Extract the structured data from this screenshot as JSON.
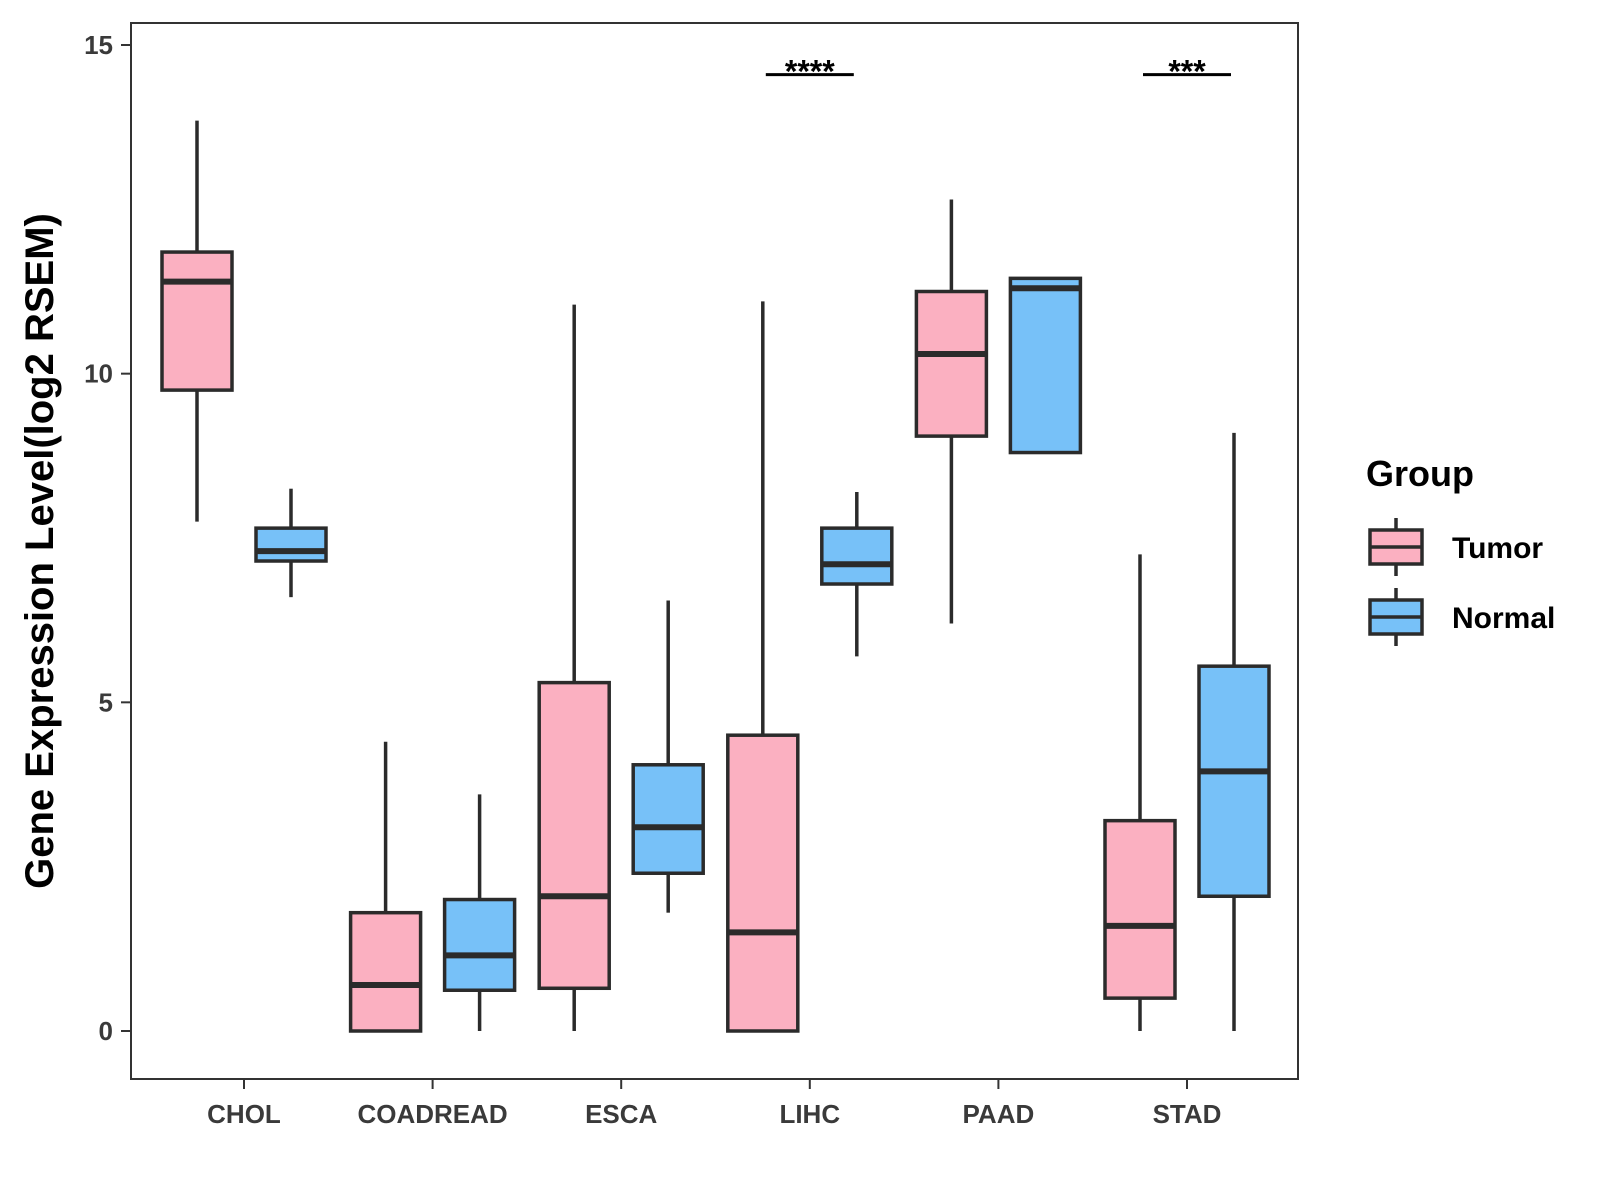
{
  "chart_data": {
    "type": "boxplot",
    "title": "",
    "xlabel": "",
    "ylabel": "Gene Expression Level(log2 RSEM)",
    "ylim": [
      -0.7,
      15.3
    ],
    "yticks": [
      0,
      5,
      10,
      15
    ],
    "ytick_labels": [
      "0",
      "5",
      "10",
      "15"
    ],
    "grid": false,
    "categories": [
      "CHOL",
      "COADREAD",
      "ESCA",
      "LIHC",
      "PAAD",
      "STAD"
    ],
    "legend": {
      "title": "Group",
      "position": "right",
      "entries": [
        "Tumor",
        "Normal"
      ]
    },
    "series": [
      {
        "name": "Tumor",
        "color": "#fbb0c1",
        "boxes": [
          {
            "category": "CHOL",
            "whisker_low": 7.75,
            "q1": 9.75,
            "median": 11.4,
            "q3": 11.85,
            "whisker_high": 13.85
          },
          {
            "category": "COADREAD",
            "whisker_low": 0,
            "q1": 0,
            "median": 0.7,
            "q3": 1.8,
            "whisker_high": 4.4
          },
          {
            "category": "ESCA",
            "whisker_low": 0,
            "q1": 0.65,
            "median": 2.05,
            "q3": 5.3,
            "whisker_high": 11.05
          },
          {
            "category": "LIHC",
            "whisker_low": 0,
            "q1": 0,
            "median": 1.5,
            "q3": 4.5,
            "whisker_high": 11.1
          },
          {
            "category": "PAAD",
            "whisker_low": 6.2,
            "q1": 9.05,
            "median": 10.3,
            "q3": 11.25,
            "whisker_high": 12.65
          },
          {
            "category": "STAD",
            "whisker_low": 0,
            "q1": 0.5,
            "median": 1.6,
            "q3": 3.2,
            "whisker_high": 7.25
          }
        ]
      },
      {
        "name": "Normal",
        "color": "#77c1f8",
        "boxes": [
          {
            "category": "CHOL",
            "whisker_low": 6.6,
            "q1": 7.15,
            "median": 7.3,
            "q3": 7.65,
            "whisker_high": 8.25
          },
          {
            "category": "COADREAD",
            "whisker_low": 0,
            "q1": 0.62,
            "median": 1.15,
            "q3": 2.0,
            "whisker_high": 3.6
          },
          {
            "category": "ESCA",
            "whisker_low": 1.8,
            "q1": 2.4,
            "median": 3.1,
            "q3": 4.05,
            "whisker_high": 6.55
          },
          {
            "category": "LIHC",
            "whisker_low": 5.7,
            "q1": 6.8,
            "median": 7.1,
            "q3": 7.65,
            "whisker_high": 8.2
          },
          {
            "category": "PAAD",
            "whisker_low": 8.8,
            "q1": 8.8,
            "median": 11.3,
            "q3": 11.45,
            "whisker_high": 11.45
          },
          {
            "category": "STAD",
            "whisker_low": 0,
            "q1": 2.05,
            "median": 3.95,
            "q3": 5.55,
            "whisker_high": 9.1
          }
        ]
      }
    ],
    "annotations": [
      {
        "category": "LIHC",
        "label": "****",
        "y": 14.55
      },
      {
        "category": "STAD",
        "label": "***",
        "y": 14.55
      }
    ]
  }
}
